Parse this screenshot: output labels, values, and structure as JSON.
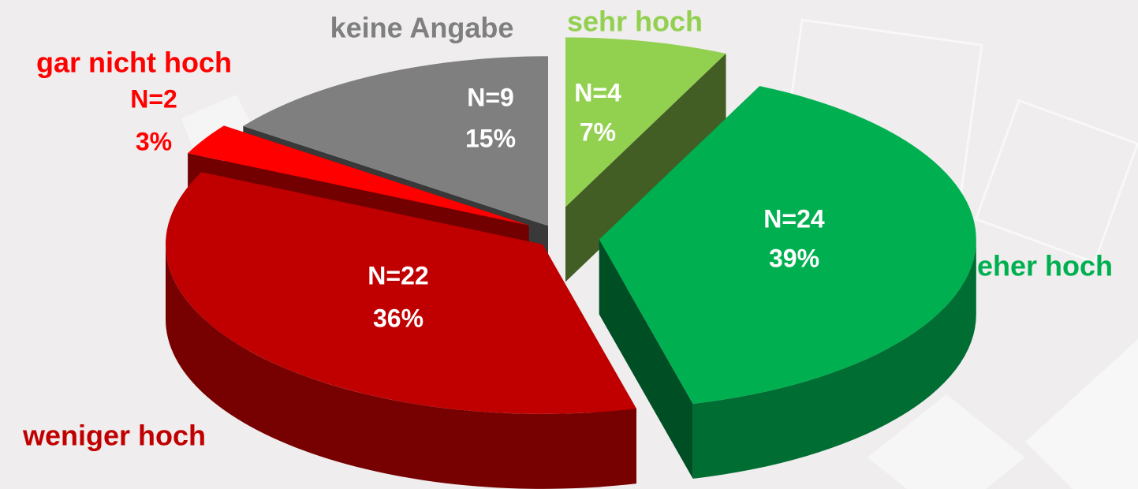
{
  "chart_data": {
    "type": "pie3d",
    "categories": [
      "sehr hoch",
      "eher hoch",
      "weniger hoch",
      "gar nicht hoch",
      "keine Angabe"
    ],
    "values": [
      7,
      39,
      36,
      3,
      15
    ],
    "value_labels": [
      "7%",
      "39%",
      "36%",
      "3%",
      "15%"
    ],
    "counts": [
      4,
      24,
      22,
      2,
      9
    ],
    "count_labels": [
      "N=4",
      "N=24",
      "N=22",
      "N=2",
      "N=9"
    ],
    "colors": [
      "#92d050",
      "#00b050",
      "#c00000",
      "#ff0000",
      "#7f7f7f"
    ]
  }
}
